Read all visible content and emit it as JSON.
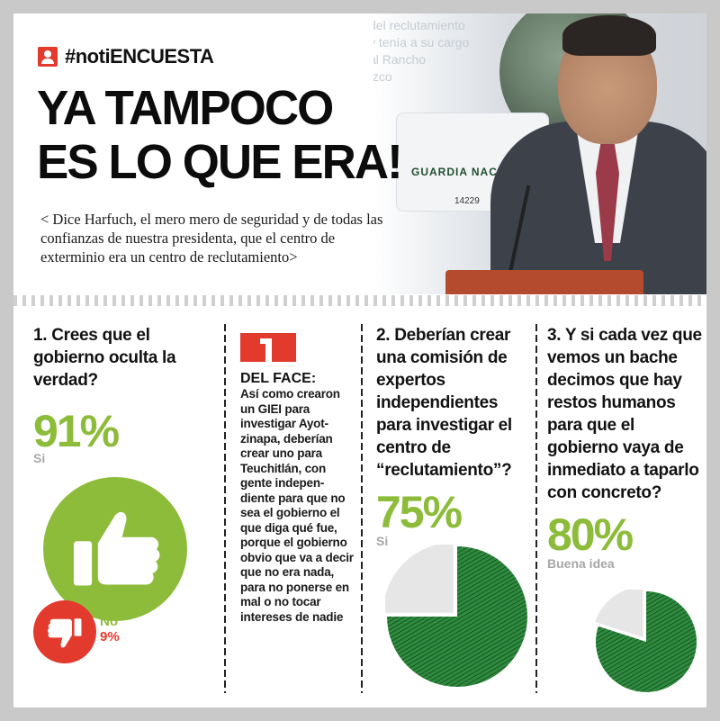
{
  "header": {
    "hashtag": "#notiENCUESTA",
    "headline_line1": "YA TAMPOCO",
    "headline_line2": "ES LO QUE ERA!",
    "subhead": "< Dice Harfuch, el mero mero de seguridad y de todas las confianzas de nuestra presidenta, que el centro de exterminio era un centro de reclutamiento>",
    "photo": {
      "screen_text": [
        "del reclutamiento",
        "y tenía a su cargo",
        "al Rancho",
        "Izco"
      ],
      "truck_label": "GUARDIA NACIONAL",
      "truck_number": "14229"
    }
  },
  "questions": [
    {
      "question": "1. Crees que el gobierno oculta la verdad?",
      "yes_percent": "91%",
      "yes_label": "Si",
      "no_label": "No",
      "no_percent": "9%",
      "icons": [
        "thumbs-up-icon",
        "thumbs-down-icon"
      ]
    },
    {
      "question": "2. Deberían crear una comisión de expertos independientes para investigar el centro de “reclutamiento”?",
      "percent": "75%",
      "label": "Si",
      "value": 75
    },
    {
      "question": "3. Y si cada vez que vemos un bache decimos que hay restos humanos para que el gobierno vaya de inmediato a taparlo con concreto?",
      "percent": "80%",
      "label": "Buena idea",
      "value": 80
    }
  ],
  "face": {
    "title": "DEL FACE:",
    "text": "Así como crearon un GIEI para investigar Ayot-zinapa, deberían crear uno para Teuchitlán, con gente indepen-diente para que no sea el gobierno el que diga qué fue, porque el gobierno obvio que va a decir que no era nada, para no ponerse en mal o no tocar intereses de nadie",
    "icon": "facebook-icon"
  },
  "colors": {
    "accent_green": "#8dbb3a",
    "pie_green": "#2e8b3e",
    "accent_red": "#e23b2e",
    "gray": "#a7a7a7"
  }
}
